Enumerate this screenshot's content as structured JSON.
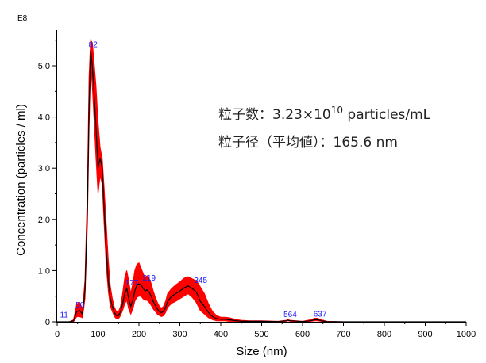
{
  "chart_data": {
    "type": "area",
    "xlabel": "Size (nm)",
    "ylabel": "Concentration (particles / ml)",
    "y_exponent_label": "E8",
    "xlim": [
      0,
      1000
    ],
    "ylim": [
      0,
      5.7
    ],
    "x_ticks": [
      0,
      100,
      200,
      300,
      400,
      500,
      600,
      700,
      800,
      900,
      1000
    ],
    "x_tick_labels": [
      "0",
      "100",
      "200",
      "300",
      "400",
      "500",
      "600",
      "700",
      "800",
      "900",
      "1000"
    ],
    "y_ticks": [
      0,
      1,
      2,
      3,
      4,
      5
    ],
    "y_tick_labels": [
      "0",
      "1.0",
      "2.0",
      "3.0",
      "4.0",
      "5.0"
    ],
    "grid": false,
    "band_color": "#ff0000",
    "line_color": "#000000",
    "label_color": "#1a1aff",
    "series": [
      {
        "x": [
          0,
          30,
          40,
          48,
          55,
          62,
          68,
          74,
          78,
          82,
          86,
          90,
          95,
          100,
          105,
          110,
          115,
          120,
          125,
          130,
          135,
          140,
          145,
          150,
          155,
          160,
          165,
          170,
          175,
          180,
          185,
          190,
          195,
          200,
          205,
          210,
          215,
          220,
          225,
          230,
          235,
          240,
          245,
          250,
          255,
          260,
          265,
          270,
          280,
          290,
          300,
          310,
          320,
          330,
          340,
          345,
          350,
          360,
          370,
          380,
          390,
          400,
          410,
          420,
          430,
          440,
          450,
          470,
          500,
          540,
          560,
          564,
          570,
          600,
          620,
          630,
          637,
          645,
          660,
          700,
          800,
          900,
          1000
        ],
        "mean": [
          0,
          0,
          0.02,
          0.2,
          0.22,
          0.15,
          0.6,
          2.2,
          4.2,
          5.3,
          5.0,
          4.5,
          3.8,
          3.0,
          3.2,
          3.0,
          2.2,
          1.4,
          0.8,
          0.45,
          0.3,
          0.18,
          0.12,
          0.12,
          0.2,
          0.35,
          0.55,
          0.65,
          0.45,
          0.3,
          0.42,
          0.6,
          0.72,
          0.74,
          0.72,
          0.66,
          0.6,
          0.62,
          0.58,
          0.5,
          0.4,
          0.32,
          0.25,
          0.2,
          0.18,
          0.2,
          0.28,
          0.4,
          0.5,
          0.55,
          0.6,
          0.66,
          0.7,
          0.65,
          0.58,
          0.5,
          0.4,
          0.3,
          0.18,
          0.1,
          0.06,
          0.05,
          0.05,
          0.04,
          0.03,
          0.02,
          0.01,
          0.01,
          0.01,
          0.005,
          0.02,
          0.03,
          0.02,
          0.005,
          0.02,
          0.04,
          0.04,
          0.02,
          0.005,
          0,
          0,
          0,
          0
        ],
        "upper": [
          0,
          0,
          0.04,
          0.35,
          0.38,
          0.25,
          0.8,
          2.6,
          4.8,
          5.5,
          5.45,
          5.1,
          4.6,
          3.9,
          3.4,
          3.2,
          2.6,
          1.9,
          1.2,
          0.7,
          0.45,
          0.28,
          0.2,
          0.2,
          0.3,
          0.55,
          0.85,
          1.0,
          0.8,
          0.55,
          0.75,
          1.0,
          1.12,
          1.15,
          1.05,
          0.95,
          0.85,
          0.9,
          0.85,
          0.75,
          0.6,
          0.48,
          0.38,
          0.3,
          0.27,
          0.3,
          0.4,
          0.55,
          0.65,
          0.72,
          0.78,
          0.85,
          0.88,
          0.84,
          0.8,
          0.75,
          0.68,
          0.55,
          0.35,
          0.2,
          0.12,
          0.09,
          0.09,
          0.08,
          0.06,
          0.04,
          0.03,
          0.02,
          0.02,
          0.01,
          0.03,
          0.04,
          0.03,
          0.01,
          0.04,
          0.07,
          0.07,
          0.04,
          0.01,
          0,
          0,
          0,
          0
        ],
        "lower": [
          0,
          0,
          0,
          0.1,
          0.1,
          0.08,
          0.45,
          1.9,
          3.8,
          5.0,
          4.6,
          4.0,
          3.2,
          2.5,
          2.85,
          2.7,
          1.9,
          1.1,
          0.6,
          0.3,
          0.2,
          0.1,
          0.06,
          0.06,
          0.12,
          0.22,
          0.35,
          0.42,
          0.25,
          0.15,
          0.25,
          0.4,
          0.48,
          0.5,
          0.5,
          0.45,
          0.42,
          0.42,
          0.38,
          0.32,
          0.25,
          0.2,
          0.15,
          0.12,
          0.1,
          0.12,
          0.18,
          0.28,
          0.36,
          0.4,
          0.45,
          0.5,
          0.55,
          0.48,
          0.38,
          0.3,
          0.22,
          0.15,
          0.08,
          0.04,
          0.02,
          0.02,
          0.02,
          0.01,
          0.01,
          0,
          0,
          0,
          0,
          0,
          0.01,
          0.02,
          0.01,
          0,
          0.01,
          0.02,
          0.02,
          0.01,
          0,
          0,
          0,
          0,
          0
        ]
      }
    ],
    "peak_labels": [
      {
        "x": 11,
        "y": 0.02,
        "text": "11"
      },
      {
        "x": 50,
        "y": 0.22,
        "text": "50"
      },
      {
        "x": 82,
        "y": 5.3,
        "text": "82"
      },
      {
        "x": 177,
        "y": 0.65,
        "text": "177"
      },
      {
        "x": 219,
        "y": 0.74,
        "text": "219"
      },
      {
        "x": 345,
        "y": 0.7,
        "text": "345"
      },
      {
        "x": 564,
        "y": 0.03,
        "text": "564"
      },
      {
        "x": 637,
        "y": 0.04,
        "text": "637"
      }
    ],
    "annotations": [
      {
        "prefix": "粒子数：3.23×10",
        "sup": "10",
        "suffix": " particles/mL"
      },
      {
        "prefix": "粒子径（平均値）：165.6 nm",
        "sup": "",
        "suffix": ""
      }
    ]
  }
}
